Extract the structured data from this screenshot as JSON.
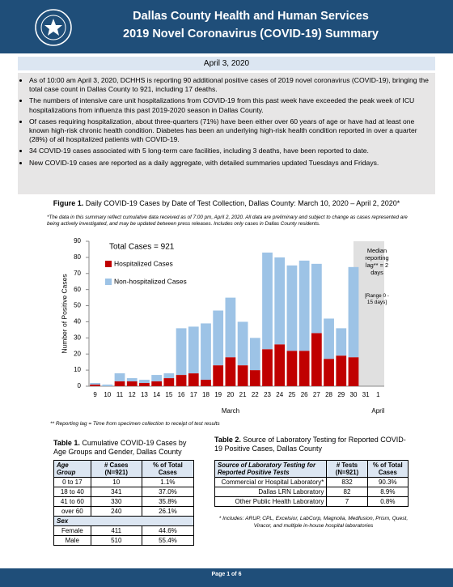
{
  "header": {
    "title": "Dallas County Health and Human Services",
    "subtitle": "2019 Novel Coronavirus (COVID-19) Summary"
  },
  "date": "April 3, 2020",
  "bullets": [
    "As of 10:00 am April 3, 2020, DCHHS is reporting 90 additional positive cases of 2019 novel coronavirus (COVID-19), bringing the total case count in Dallas County to 921, including 17 deaths.",
    "The numbers of intensive care unit hospitalizations from COVID-19 from this past week have exceeded the peak week of ICU hospitalizations from influenza this past 2019-2020 season in Dallas County.",
    "Of cases requiring hospitalization, about three-quarters (71%) have been either over 60 years of age or have had at least one known high-risk chronic health condition.  Diabetes has been an underlying high-risk health condition reported in over a quarter (28%) of all hospitalized patients with COVID-19.",
    "34 COVID-19 cases associated with 5 long-term care facilities, including 3 deaths, have been reported to date.",
    "New COVID-19 cases are reported as a daily aggregate, with detailed summaries updated Tuesdays and Fridays."
  ],
  "figure": {
    "label": "Figure 1.",
    "caption": "Daily COVID-19 Cases by Date of Test Collection, Dallas County: March 10, 2020 – April 2, 2020*",
    "note": "*The data in this summary reflect cumulative data received as of 7:00 pm, April 2, 2020.  All data are preliminary and subject to change as cases represented are being actively investigated, and may be updated between press releases.  Includes only cases in Dallas County residents.",
    "footnote": "** Reporting lag = Time from specimen collection to receipt of test results"
  },
  "chart_data": {
    "type": "stacked-bar",
    "y_label": "Number of Positive Cases",
    "categories": [
      "9",
      "10",
      "11",
      "12",
      "13",
      "14",
      "15",
      "16",
      "17",
      "18",
      "19",
      "20",
      "21",
      "22",
      "23",
      "24",
      "25",
      "26",
      "27",
      "28",
      "29",
      "30",
      "31",
      "1"
    ],
    "series": [
      {
        "name": "Hospitalized Cases",
        "color": "#c00000",
        "values": [
          1,
          0,
          3,
          3,
          2,
          3,
          5,
          7,
          8,
          4,
          13,
          18,
          13,
          10,
          23,
          26,
          22,
          22,
          33,
          17,
          19,
          18,
          0,
          0
        ]
      },
      {
        "name": "Non-hospitalized Cases",
        "color": "#9dc3e6",
        "values": [
          1,
          1,
          5,
          2,
          2,
          4,
          3,
          29,
          29,
          35,
          34,
          37,
          27,
          20,
          60,
          54,
          53,
          56,
          43,
          25,
          17,
          56,
          0,
          0
        ]
      }
    ],
    "ylim": [
      0,
      90
    ],
    "yticks": [
      0,
      10,
      20,
      30,
      40,
      50,
      60,
      70,
      80,
      90
    ],
    "grid": false,
    "annotations": {
      "total": "Total Cases = 921",
      "lag": "Median reporting lag** = 2 days",
      "range": "[Range 0 - 15 days]"
    },
    "months": [
      "March",
      "April"
    ]
  },
  "table1": {
    "label": "Table 1.",
    "caption": "Cumulative COVID-19 Cases by Age Groups and Gender, Dallas County",
    "columns": [
      "Age Group",
      "# Cases (N=921)",
      "% of Total Cases"
    ],
    "rows": [
      [
        "0 to 17",
        "10",
        "1.1%"
      ],
      [
        "18 to 40",
        "341",
        "37.0%"
      ],
      [
        "41 to 60",
        "330",
        "35.8%"
      ],
      [
        "over 60",
        "240",
        "26.1%"
      ]
    ],
    "section": "Sex",
    "rows2": [
      [
        "Female",
        "411",
        "44.6%"
      ],
      [
        "Male",
        "510",
        "55.4%"
      ]
    ]
  },
  "table2": {
    "label": "Table 2.",
    "caption": "Source of Laboratory Testing for Reported COVID-19 Positive Cases, Dallas County",
    "columns": [
      "Source of Laboratory Testing for Reported Positive Tests",
      "# Tests (N=921)",
      "% of Total Cases"
    ],
    "rows": [
      [
        "Commercial or Hospital Laboratory*",
        "832",
        "90.3%"
      ],
      [
        "Dallas LRN Laboratory",
        "82",
        "8.9%"
      ],
      [
        "Other Public Health Laboratory",
        "7",
        "0.8%"
      ]
    ],
    "note": "* Includes: ARUP, CPL, Excelsior, LabCorp, Magnolia, Medfusion, Prism, Quest, Viracor, and multiple in-house hospital laboratories"
  },
  "footer": "Page 1 of 6"
}
